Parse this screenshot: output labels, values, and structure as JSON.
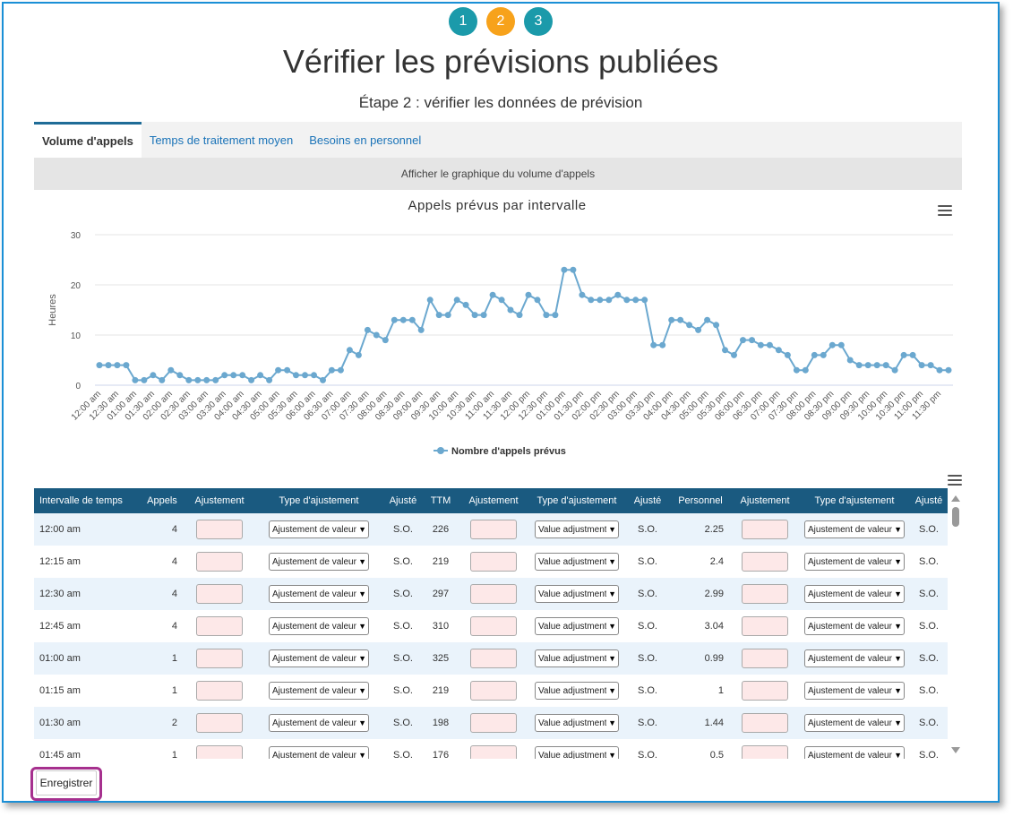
{
  "colors": {
    "step_teal": "#1b9aaa",
    "step_orange": "#f7a21b",
    "header_blue": "#1a5a80",
    "series_blue": "#6ba8cf",
    "link_blue": "#1a73b8"
  },
  "steps": [
    {
      "label": "1",
      "state": "done"
    },
    {
      "label": "2",
      "state": "current"
    },
    {
      "label": "3",
      "state": "todo"
    }
  ],
  "page": {
    "title": "Vérifier les prévisions publiées",
    "subtitle": "Étape 2 : vérifier les données de prévision"
  },
  "tabs": [
    {
      "label": "Volume d'appels",
      "active": true
    },
    {
      "label": "Temps de traitement moyen",
      "active": false
    },
    {
      "label": "Besoins en personnel",
      "active": false
    }
  ],
  "chart_toggle": {
    "label": "Afficher le graphique du volume d'appels"
  },
  "chart_menu": {
    "icon": "hamburger-menu-icon"
  },
  "chart_data": {
    "type": "line",
    "title": "Appels prévus par intervalle",
    "xlabel": "",
    "ylabel": "Heures",
    "ylim": [
      0,
      30
    ],
    "yticks": [
      0,
      10,
      20,
      30
    ],
    "grid": true,
    "legend": "bottom-center",
    "x_tick_labels": [
      "12:00 am",
      "12:30 am",
      "01:00 am",
      "01:30 am",
      "02:00 am",
      "02:30 am",
      "03:00 am",
      "03:30 am",
      "04:00 am",
      "04:30 am",
      "05:00 am",
      "05:30 am",
      "06:00 am",
      "06:30 am",
      "07:00 am",
      "07:30 am",
      "08:00 am",
      "08:30 am",
      "09:00 am",
      "09:30 am",
      "10:00 am",
      "10:30 am",
      "11:00 am",
      "11:30 am",
      "12:00 pm",
      "12:30 pm",
      "01:00 pm",
      "01:30 pm",
      "02:00 pm",
      "02:30 pm",
      "03:00 pm",
      "03:30 pm",
      "04:00 pm",
      "04:30 pm",
      "05:00 pm",
      "05:30 pm",
      "06:00 pm",
      "06:30 pm",
      "07:00 pm",
      "07:30 pm",
      "08:00 pm",
      "08:30 pm",
      "09:00 pm",
      "09:30 pm",
      "10:00 pm",
      "10:30 pm",
      "11:00 pm",
      "11:30 pm"
    ],
    "series": [
      {
        "name": "Nombre d'appels prévus",
        "color": "#6ba8cf",
        "values": [
          4,
          4,
          4,
          4,
          1,
          1,
          2,
          1,
          3,
          2,
          1,
          1,
          1,
          1,
          2,
          2,
          2,
          1,
          2,
          1,
          3,
          3,
          2,
          2,
          2,
          1,
          3,
          3,
          7,
          6,
          11,
          10,
          9,
          13,
          13,
          13,
          11,
          17,
          14,
          14,
          17,
          16,
          14,
          14,
          18,
          17,
          15,
          14,
          18,
          17,
          14,
          14,
          23,
          23,
          18,
          17,
          17,
          17,
          18,
          17,
          17,
          17,
          8,
          8,
          13,
          13,
          12,
          11,
          13,
          12,
          7,
          6,
          9,
          9,
          8,
          8,
          7,
          6,
          3,
          3,
          6,
          6,
          8,
          8,
          5,
          4,
          4,
          4,
          4,
          3,
          6,
          6,
          4,
          4,
          3,
          3
        ]
      }
    ]
  },
  "table_menu": {
    "icon": "hamburger-menu-icon"
  },
  "table": {
    "columns": [
      "Intervalle de temps",
      "Appels",
      "Ajustement",
      "Type d'ajustement",
      "Ajusté",
      "TTM",
      "Ajustement",
      "Type d'ajustement",
      "Ajusté",
      "Personnel",
      "Ajustement",
      "Type d'ajustement",
      "Ajusté"
    ],
    "select1": "Ajustement de valeur",
    "select2": "Value adjustment",
    "select3": "Ajustement de valeur",
    "rows": [
      {
        "time": "12:00 am",
        "calls": "4",
        "adj1": "S.O.",
        "ttm": "226",
        "adj2": "S.O.",
        "staff": "2.25",
        "adj3": "S.O."
      },
      {
        "time": "12:15 am",
        "calls": "4",
        "adj1": "S.O.",
        "ttm": "219",
        "adj2": "S.O.",
        "staff": "2.4",
        "adj3": "S.O."
      },
      {
        "time": "12:30 am",
        "calls": "4",
        "adj1": "S.O.",
        "ttm": "297",
        "adj2": "S.O.",
        "staff": "2.99",
        "adj3": "S.O."
      },
      {
        "time": "12:45 am",
        "calls": "4",
        "adj1": "S.O.",
        "ttm": "310",
        "adj2": "S.O.",
        "staff": "3.04",
        "adj3": "S.O."
      },
      {
        "time": "01:00 am",
        "calls": "1",
        "adj1": "S.O.",
        "ttm": "325",
        "adj2": "S.O.",
        "staff": "0.99",
        "adj3": "S.O."
      },
      {
        "time": "01:15 am",
        "calls": "1",
        "adj1": "S.O.",
        "ttm": "219",
        "adj2": "S.O.",
        "staff": "1",
        "adj3": "S.O."
      },
      {
        "time": "01:30 am",
        "calls": "2",
        "adj1": "S.O.",
        "ttm": "198",
        "adj2": "S.O.",
        "staff": "1.44",
        "adj3": "S.O."
      },
      {
        "time": "01:45 am",
        "calls": "1",
        "adj1": "S.O.",
        "ttm": "176",
        "adj2": "S.O.",
        "staff": "0.5",
        "adj3": "S.O."
      }
    ]
  },
  "save_button": {
    "label": "Enregistrer"
  }
}
